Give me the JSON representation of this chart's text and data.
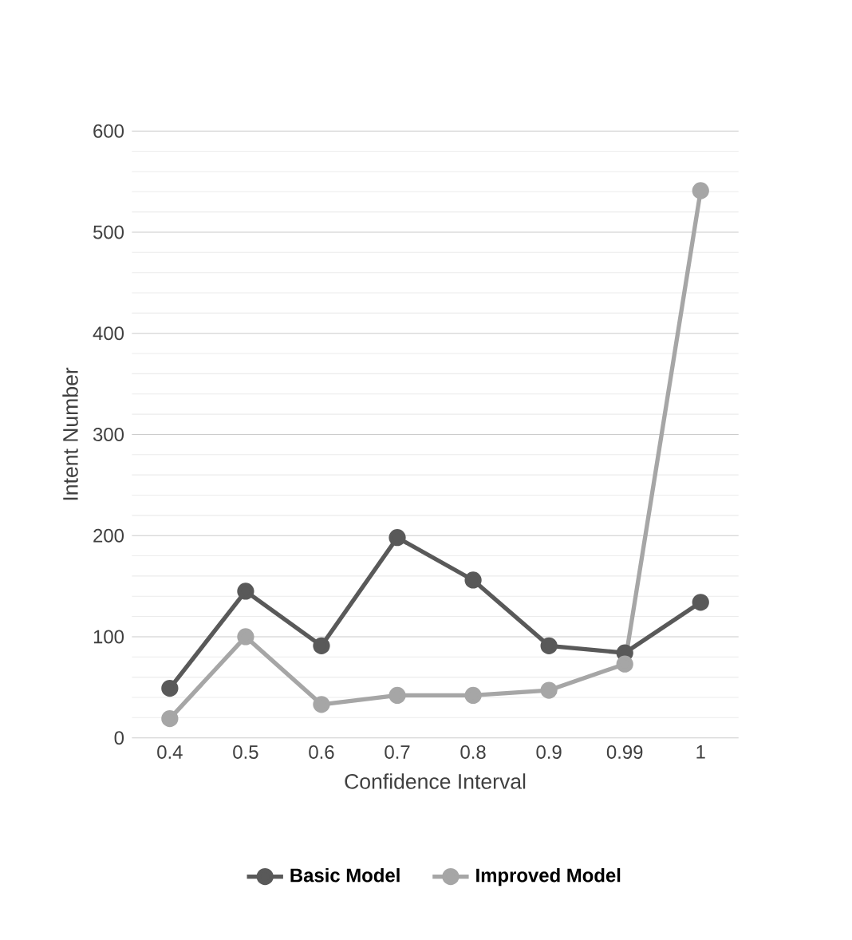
{
  "chart_data": {
    "type": "line",
    "xlabel": "Confidence Interval",
    "ylabel": "Intent Number",
    "categories": [
      "0.4",
      "0.5",
      "0.6",
      "0.7",
      "0.8",
      "0.9",
      "0.99",
      "1"
    ],
    "series": [
      {
        "name": "Basic Model",
        "color": "#595959",
        "values": [
          49,
          145,
          91,
          198,
          156,
          91,
          84,
          134
        ]
      },
      {
        "name": "Improved Model",
        "color": "#a6a6a6",
        "values": [
          19,
          100,
          33,
          42,
          42,
          47,
          73,
          541
        ]
      }
    ],
    "ylim": [
      0,
      600
    ],
    "yticks": [
      0,
      100,
      200,
      300,
      400,
      500,
      600
    ],
    "grid": "y",
    "legend": "bottom",
    "marker": "circle",
    "line_style": "solid"
  }
}
